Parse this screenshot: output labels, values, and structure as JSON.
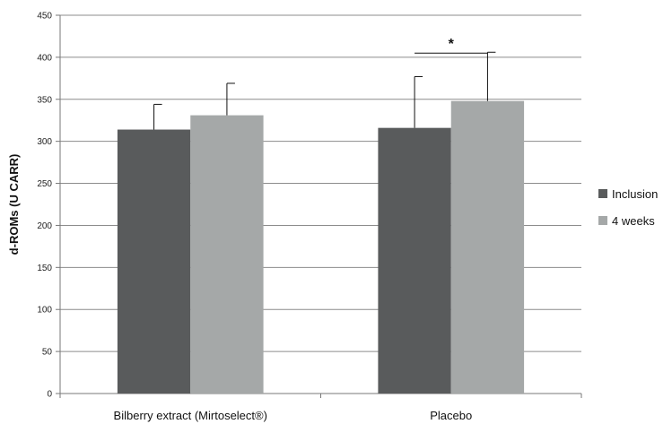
{
  "chart_data": {
    "type": "bar",
    "title": "",
    "xlabel": "",
    "ylabel": "d-ROMs (U CARR)",
    "ylim": [
      0,
      450
    ],
    "yticks": [
      0,
      50,
      100,
      150,
      200,
      250,
      300,
      350,
      400,
      450
    ],
    "grid": true,
    "legend_position": "right",
    "categories": [
      "Bilberry extract (Mirtoselect®)",
      "Placebo"
    ],
    "series": [
      {
        "name": "Inclusion",
        "values": [
          314,
          316
        ],
        "error_plus": [
          30,
          61
        ],
        "color": "#595b5c"
      },
      {
        "name": "4 weeks",
        "values": [
          331,
          348
        ],
        "error_plus": [
          38,
          58
        ],
        "color": "#a5a8a8"
      }
    ],
    "annotations": [
      {
        "text": "*",
        "category": "Placebo",
        "bracket": [
          "Inclusion",
          "4 weeks"
        ],
        "y": 405
      }
    ]
  }
}
